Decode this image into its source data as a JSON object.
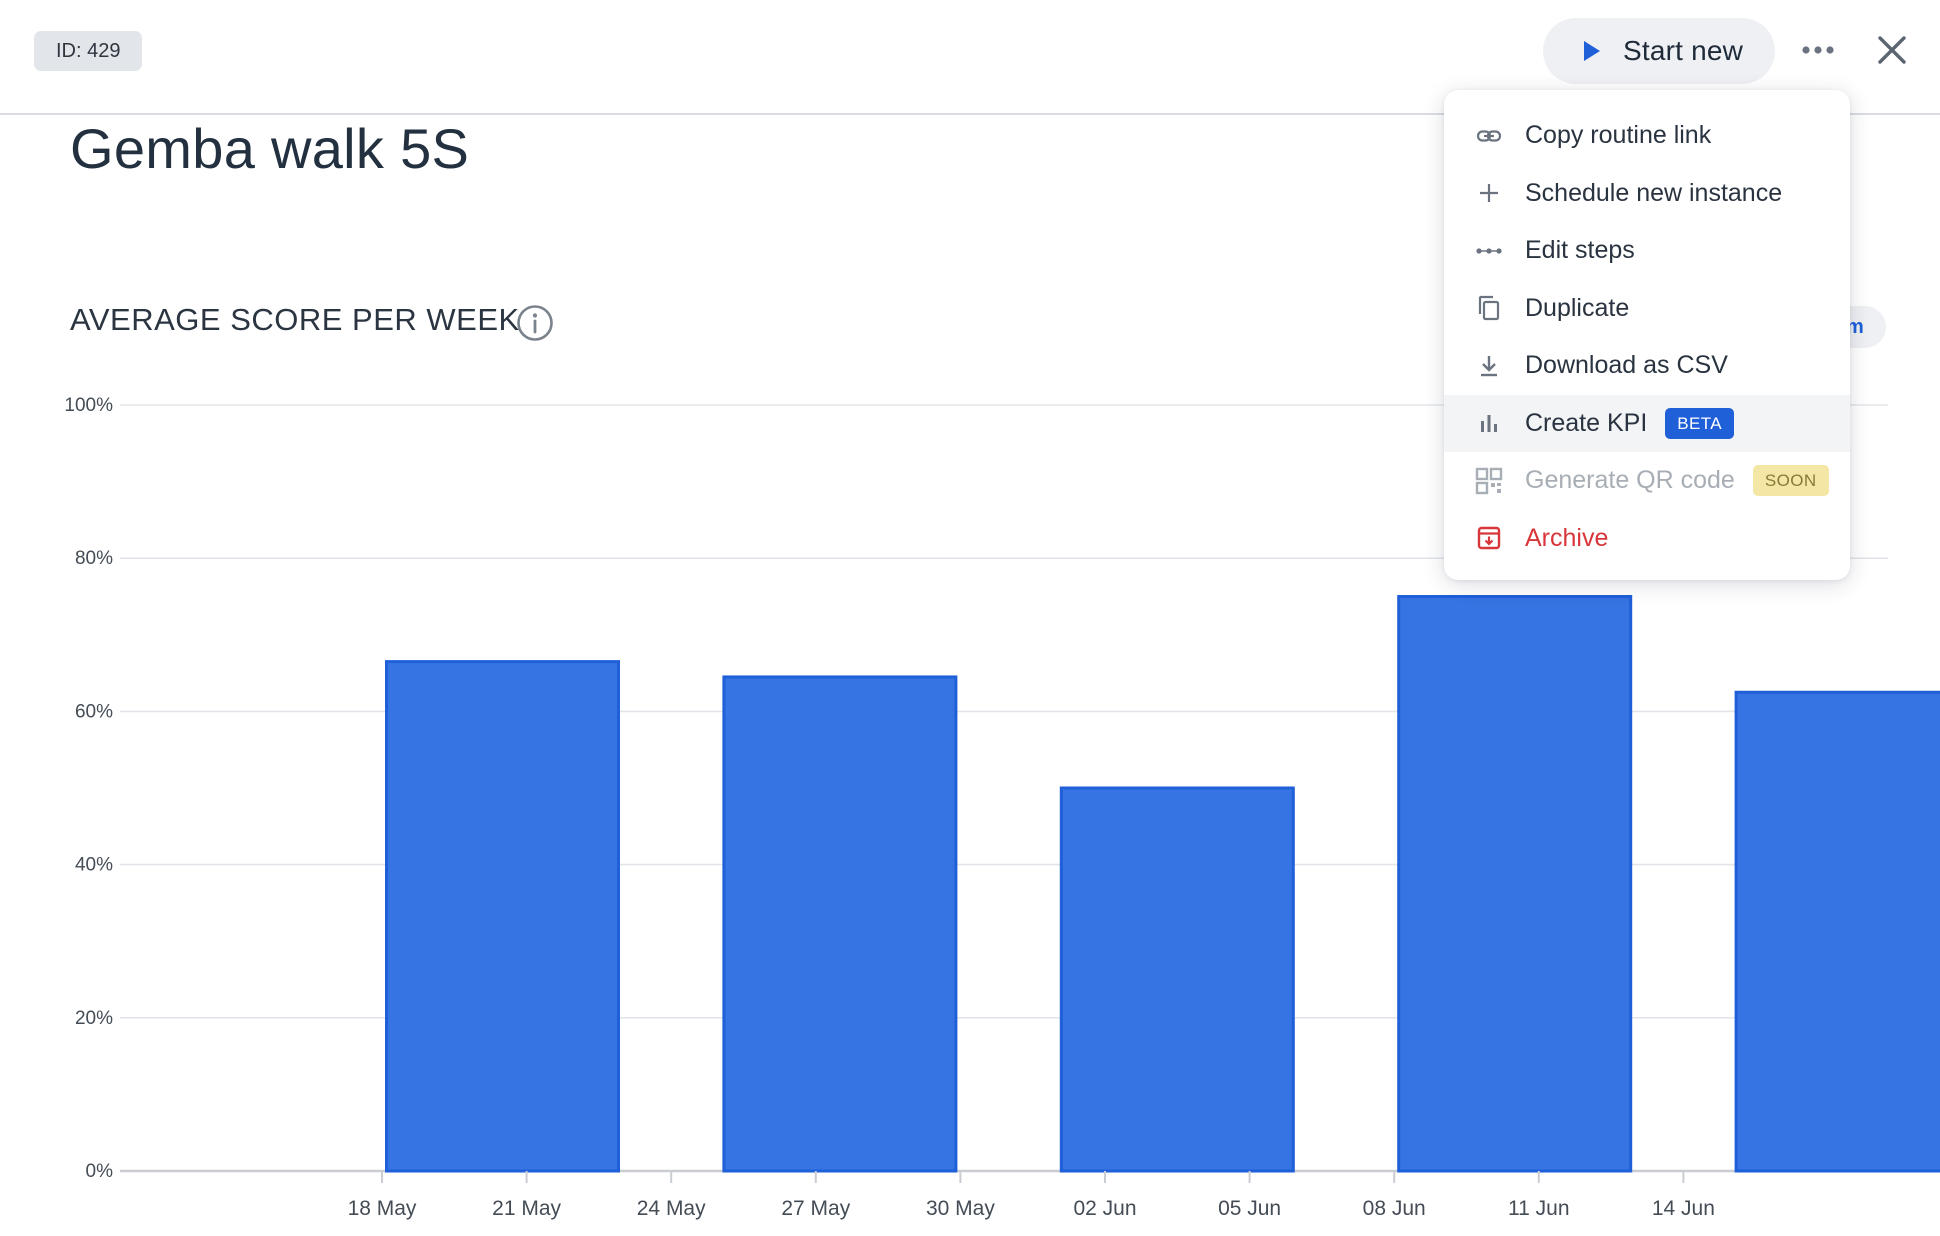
{
  "header": {
    "id_badge": "ID: 429",
    "start_button_label": "Start new"
  },
  "page": {
    "title": "Gemba walk 5S"
  },
  "chart_section": {
    "title": "AVERAGE SCORE PER WEEK",
    "partial_button_text": "m"
  },
  "menu": {
    "items": [
      {
        "label": "Copy routine link",
        "icon": "link-icon"
      },
      {
        "label": "Schedule new instance",
        "icon": "plus-icon"
      },
      {
        "label": "Edit steps",
        "icon": "steps-icon"
      },
      {
        "label": "Duplicate",
        "icon": "duplicate-icon"
      },
      {
        "label": "Download as CSV",
        "icon": "download-icon"
      },
      {
        "label": "Create KPI",
        "icon": "bar-chart-icon",
        "badge": "BETA"
      },
      {
        "label": "Generate QR code",
        "icon": "qr-code-icon",
        "badge": "SOON",
        "disabled": true
      },
      {
        "label": "Archive",
        "icon": "archive-icon",
        "danger": true
      }
    ]
  },
  "colors": {
    "accent": "#1f5fd8",
    "bar_fill": "#3674e3",
    "bar_stroke": "#1f5fd8",
    "danger": "#d8363a",
    "beta_badge": "#1f5fd8",
    "soon_badge": "#f4e6a4"
  },
  "chart_data": {
    "type": "bar",
    "x": [
      "2021-05-17",
      "2021-05-24",
      "2021-05-31",
      "2021-06-07",
      "2021-06-14"
    ],
    "values": [
      66.5,
      64.5,
      50,
      75,
      62.5
    ],
    "x_ticks": [
      "18 May",
      "21 May",
      "24 May",
      "27 May",
      "30 May",
      "02 Jun",
      "05 Jun",
      "08 Jun",
      "11 Jun",
      "14 Jun"
    ],
    "y_ticks": [
      "0%",
      "20%",
      "40%",
      "60%",
      "80%",
      "100%"
    ],
    "y_tick_values": [
      0,
      20,
      40,
      60,
      80,
      100
    ],
    "ylim": [
      0,
      100
    ],
    "grid": true,
    "legend": "none"
  }
}
